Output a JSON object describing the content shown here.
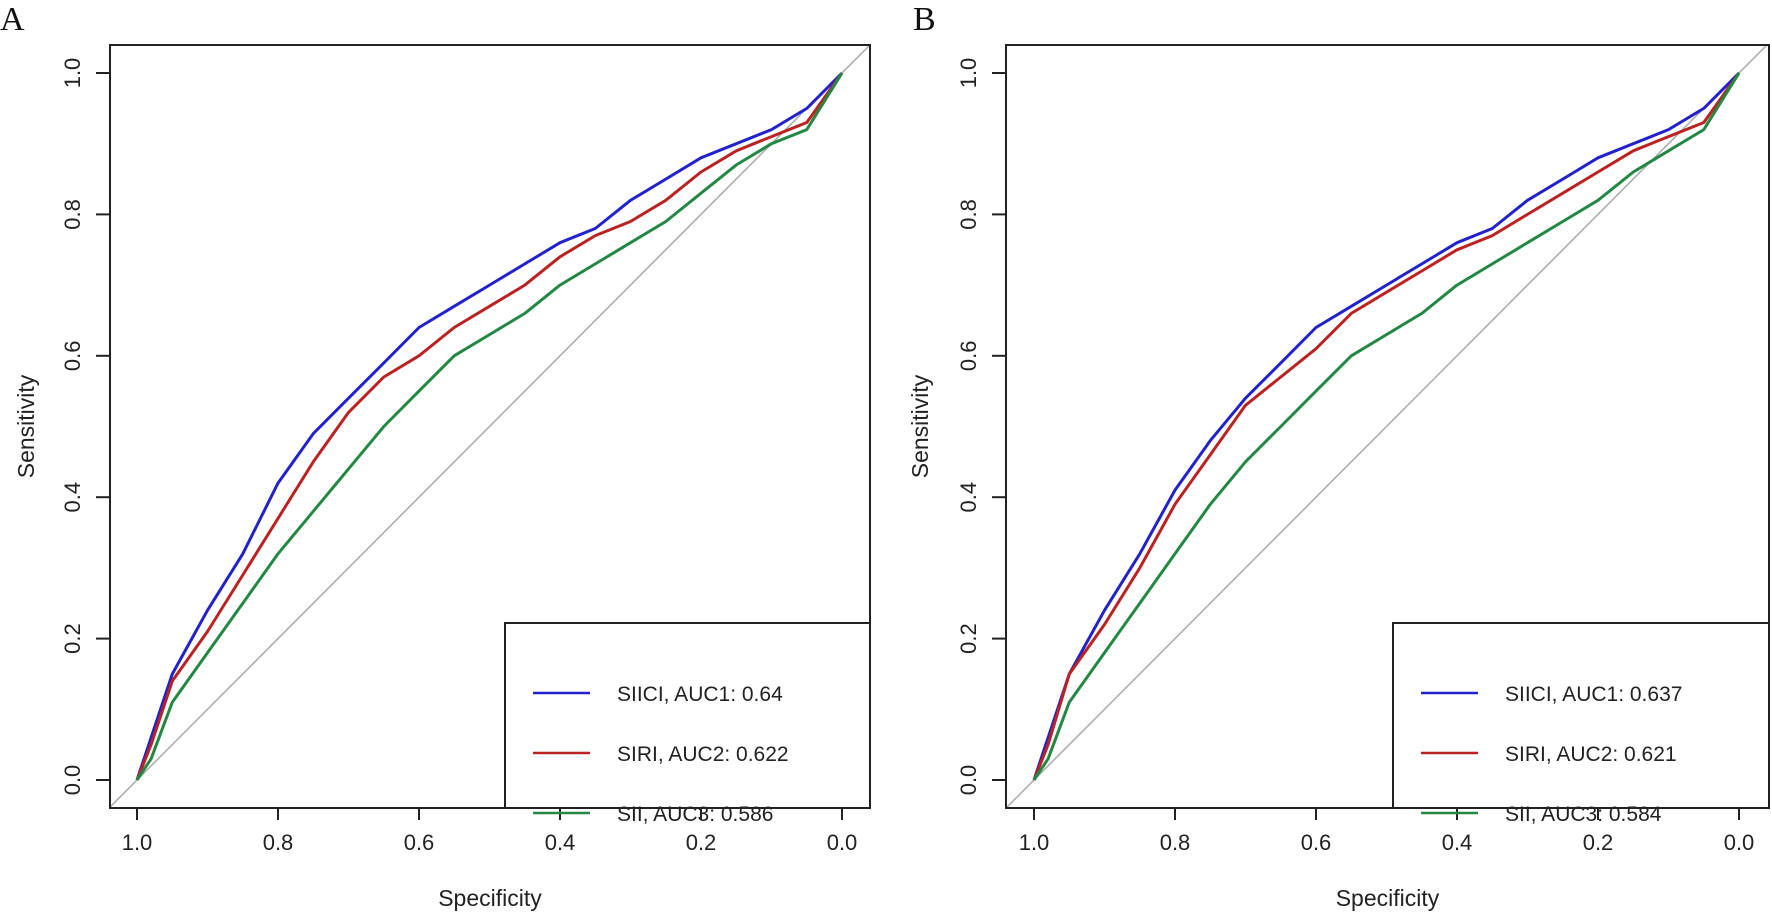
{
  "chart_data": [
    {
      "type": "line",
      "panel_label": "A",
      "xlabel": "Specificity",
      "ylabel": "Sensitivity",
      "xlim": [
        1.0,
        0.0
      ],
      "ylim": [
        0.0,
        1.0
      ],
      "x_ticks": [
        "1.0",
        "0.8",
        "0.6",
        "0.4",
        "0.2",
        "0.0"
      ],
      "y_ticks": [
        "0.0",
        "0.2",
        "0.4",
        "0.6",
        "0.8",
        "1.0"
      ],
      "reference_line": "diagonal",
      "legend_position": "bottom-right",
      "series": [
        {
          "name": "SIICI, AUC1: 0.64",
          "color": "#2222cc",
          "x": [
            1,
            0.98,
            0.95,
            0.9,
            0.85,
            0.8,
            0.75,
            0.7,
            0.65,
            0.6,
            0.55,
            0.5,
            0.45,
            0.4,
            0.35,
            0.3,
            0.25,
            0.2,
            0.15,
            0.1,
            0.05,
            0
          ],
          "y": [
            0,
            0.06,
            0.15,
            0.24,
            0.32,
            0.42,
            0.49,
            0.54,
            0.59,
            0.64,
            0.67,
            0.7,
            0.73,
            0.76,
            0.78,
            0.82,
            0.85,
            0.88,
            0.9,
            0.92,
            0.95,
            1
          ]
        },
        {
          "name": "SIRI, AUC2: 0.622",
          "color": "#bb2222",
          "x": [
            1,
            0.98,
            0.95,
            0.9,
            0.85,
            0.8,
            0.75,
            0.7,
            0.65,
            0.6,
            0.55,
            0.5,
            0.45,
            0.4,
            0.35,
            0.3,
            0.25,
            0.2,
            0.15,
            0.1,
            0.05,
            0
          ],
          "y": [
            0,
            0.05,
            0.14,
            0.21,
            0.29,
            0.37,
            0.45,
            0.52,
            0.57,
            0.6,
            0.64,
            0.67,
            0.7,
            0.74,
            0.77,
            0.79,
            0.82,
            0.86,
            0.89,
            0.91,
            0.93,
            1
          ]
        },
        {
          "name": "SII, AUC3: 0.586",
          "color": "#228844",
          "x": [
            1,
            0.98,
            0.95,
            0.9,
            0.85,
            0.8,
            0.75,
            0.7,
            0.65,
            0.6,
            0.55,
            0.5,
            0.45,
            0.4,
            0.35,
            0.3,
            0.25,
            0.2,
            0.15,
            0.1,
            0.05,
            0
          ],
          "y": [
            0,
            0.03,
            0.11,
            0.18,
            0.25,
            0.32,
            0.38,
            0.44,
            0.5,
            0.55,
            0.6,
            0.63,
            0.66,
            0.7,
            0.73,
            0.76,
            0.79,
            0.83,
            0.87,
            0.9,
            0.92,
            1
          ]
        }
      ]
    },
    {
      "type": "line",
      "panel_label": "B",
      "xlabel": "Specificity",
      "ylabel": "Sensitivity",
      "xlim": [
        1.0,
        0.0
      ],
      "ylim": [
        0.0,
        1.0
      ],
      "x_ticks": [
        "1.0",
        "0.8",
        "0.6",
        "0.4",
        "0.2",
        "0.0"
      ],
      "y_ticks": [
        "0.0",
        "0.2",
        "0.4",
        "0.6",
        "0.8",
        "1.0"
      ],
      "reference_line": "diagonal",
      "legend_position": "bottom-right",
      "series": [
        {
          "name": "SIICI, AUC1: 0.637",
          "color": "#2222cc",
          "x": [
            1,
            0.98,
            0.95,
            0.9,
            0.85,
            0.8,
            0.75,
            0.7,
            0.65,
            0.6,
            0.55,
            0.5,
            0.45,
            0.4,
            0.35,
            0.3,
            0.25,
            0.2,
            0.15,
            0.1,
            0.05,
            0
          ],
          "y": [
            0,
            0.06,
            0.15,
            0.24,
            0.32,
            0.41,
            0.48,
            0.54,
            0.59,
            0.64,
            0.67,
            0.7,
            0.73,
            0.76,
            0.78,
            0.82,
            0.85,
            0.88,
            0.9,
            0.92,
            0.95,
            1
          ]
        },
        {
          "name": "SIRI, AUC2: 0.621",
          "color": "#bb2222",
          "x": [
            1,
            0.98,
            0.95,
            0.9,
            0.85,
            0.8,
            0.75,
            0.7,
            0.65,
            0.6,
            0.55,
            0.5,
            0.45,
            0.4,
            0.35,
            0.3,
            0.25,
            0.2,
            0.15,
            0.1,
            0.05,
            0
          ],
          "y": [
            0,
            0.05,
            0.15,
            0.22,
            0.3,
            0.39,
            0.46,
            0.53,
            0.57,
            0.61,
            0.66,
            0.69,
            0.72,
            0.75,
            0.77,
            0.8,
            0.83,
            0.86,
            0.89,
            0.91,
            0.93,
            1
          ]
        },
        {
          "name": "SII, AUC3: 0.584",
          "color": "#228844",
          "x": [
            1,
            0.98,
            0.95,
            0.9,
            0.85,
            0.8,
            0.75,
            0.7,
            0.65,
            0.6,
            0.55,
            0.5,
            0.45,
            0.4,
            0.35,
            0.3,
            0.25,
            0.2,
            0.15,
            0.1,
            0.05,
            0
          ],
          "y": [
            0,
            0.03,
            0.11,
            0.18,
            0.25,
            0.32,
            0.39,
            0.45,
            0.5,
            0.55,
            0.6,
            0.63,
            0.66,
            0.7,
            0.73,
            0.76,
            0.79,
            0.82,
            0.86,
            0.89,
            0.92,
            1
          ]
        }
      ]
    }
  ]
}
